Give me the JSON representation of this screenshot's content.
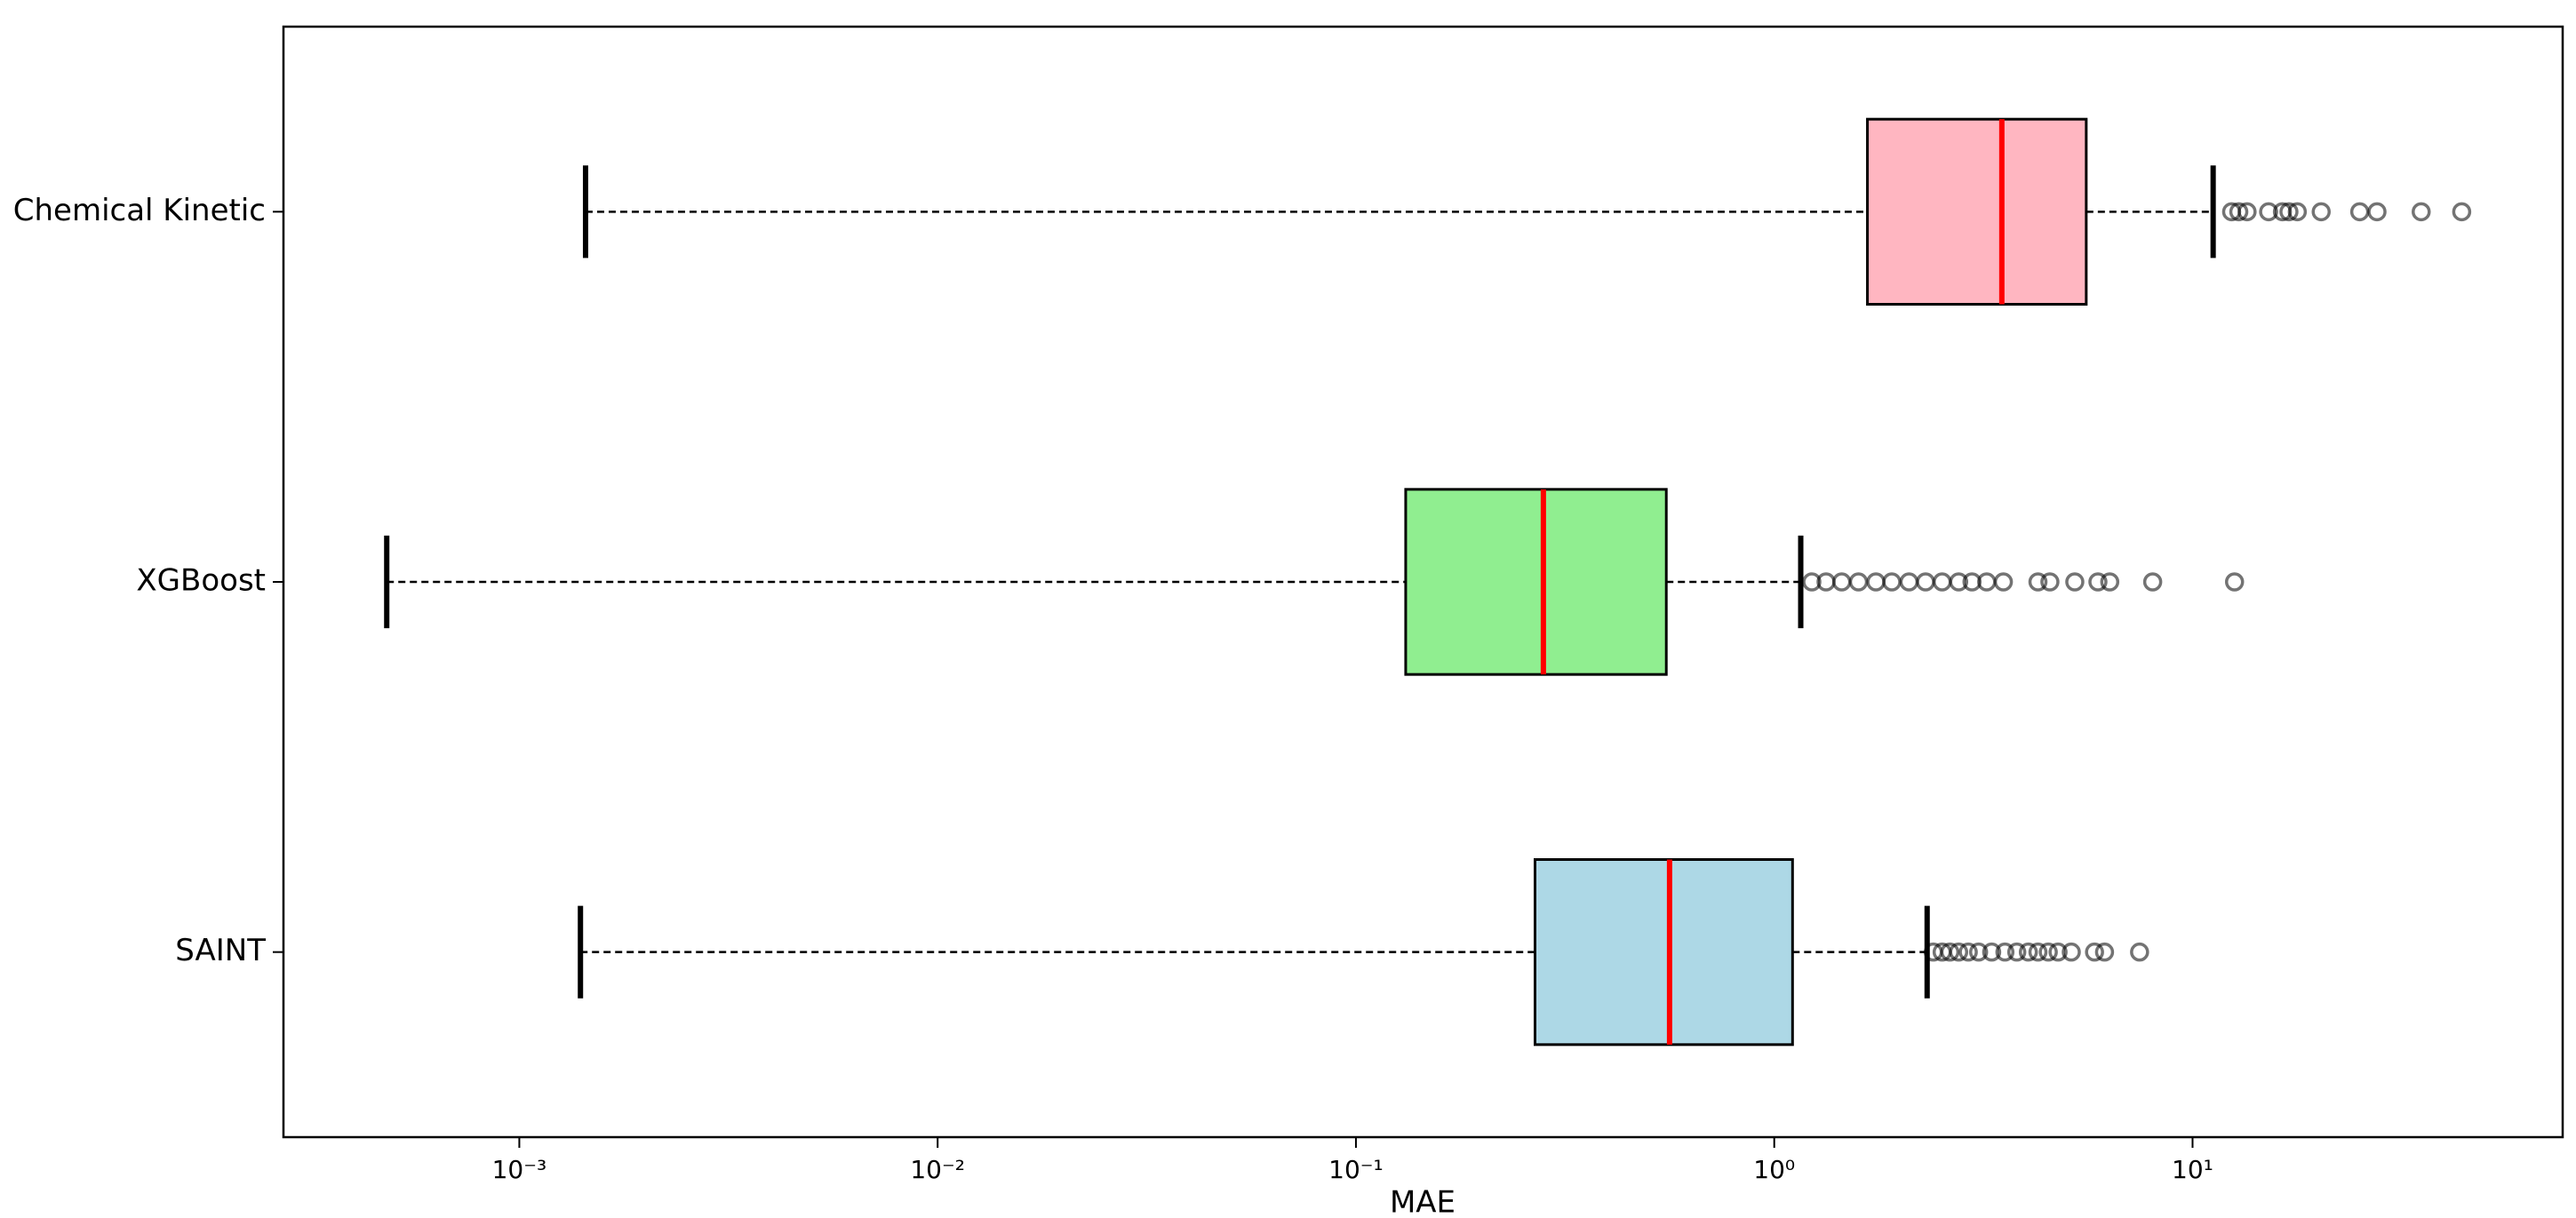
{
  "chart_data": {
    "type": "box",
    "xlabel": "MAE",
    "xscale": "log",
    "xlim": [
      0.000273,
      76.7
    ],
    "xticks": [
      {
        "value": 0.001,
        "label": "10⁻³"
      },
      {
        "value": 0.01,
        "label": "10⁻²"
      },
      {
        "value": 0.1,
        "label": "10⁻¹"
      },
      {
        "value": 1,
        "label": "10⁰"
      },
      {
        "value": 10,
        "label": "10¹"
      }
    ],
    "categories": [
      "Chemical Kinetic",
      "XGBoost",
      "SAINT"
    ],
    "median_color": "#ff0000",
    "boxes": [
      {
        "color": "#ffb6c1",
        "whisker_low": 0.00144,
        "q1": 1.67,
        "median": 3.5,
        "q3": 5.57,
        "whisker_high": 11.2,
        "outliers": [
          12.4,
          12.9,
          13.5,
          15.2,
          16.4,
          17.0,
          17.8,
          20.3,
          25.1,
          27.6,
          35.2,
          44.0
        ]
      },
      {
        "color": "#90ee90",
        "whisker_low": 0.000482,
        "q1": 0.1315,
        "median": 0.2806,
        "q3": 0.552,
        "whisker_high": 1.157,
        "outliers": [
          1.23,
          1.33,
          1.45,
          1.59,
          1.75,
          1.91,
          2.1,
          2.3,
          2.52,
          2.76,
          2.97,
          3.22,
          3.53,
          4.27,
          4.56,
          5.23,
          5.94,
          6.34,
          8.03,
          12.6
        ]
      },
      {
        "color": "#add8e6",
        "whisker_low": 0.0014,
        "q1": 0.268,
        "median": 0.562,
        "q3": 1.106,
        "whisker_high": 2.32,
        "outliers": [
          2.4,
          2.52,
          2.63,
          2.76,
          2.91,
          3.08,
          3.31,
          3.56,
          3.8,
          4.05,
          4.27,
          4.52,
          4.77,
          5.13,
          5.83,
          6.16,
          7.47
        ]
      }
    ]
  }
}
